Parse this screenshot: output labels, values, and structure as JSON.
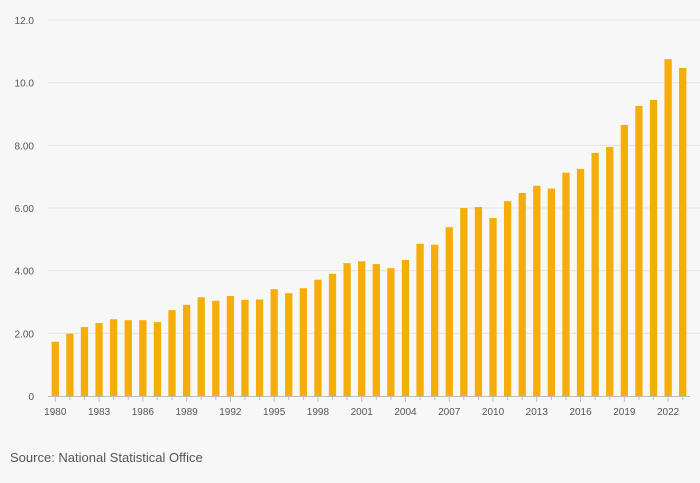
{
  "colors": {
    "bar": "#f5ad0a",
    "grid": "#e4e4e4",
    "axis": "#bdbdbd",
    "tick_text": "#555555",
    "background": "#f7f7f7"
  },
  "chart_data": {
    "type": "bar",
    "title": "",
    "xlabel": "",
    "ylabel": "",
    "ylim": [
      0,
      12
    ],
    "y_ticks": [
      {
        "value": 0,
        "label": "0"
      },
      {
        "value": 2,
        "label": "2.00"
      },
      {
        "value": 4,
        "label": "4.00"
      },
      {
        "value": 6,
        "label": "6.00"
      },
      {
        "value": 8,
        "label": "8.00"
      },
      {
        "value": 10,
        "label": "10.0"
      },
      {
        "value": 12,
        "label": "12.0"
      }
    ],
    "x_tick_labels": [
      "1980",
      "1983",
      "1986",
      "1989",
      "1992",
      "1995",
      "1998",
      "2001",
      "2004",
      "2007",
      "2010",
      "2013",
      "2016",
      "2019",
      "2022"
    ],
    "categories": [
      "1980",
      "1981",
      "1982",
      "1983",
      "1984",
      "1985",
      "1986",
      "1987",
      "1988",
      "1989",
      "1990",
      "1991",
      "1992",
      "1993",
      "1994",
      "1995",
      "1996",
      "1997",
      "1998",
      "1999",
      "2000",
      "2001",
      "2002",
      "2003",
      "2004",
      "2005",
      "2006",
      "2007",
      "2008",
      "2009",
      "2010",
      "2011",
      "2012",
      "2013",
      "2014",
      "2015",
      "2016",
      "2017",
      "2018",
      "2019",
      "2020",
      "2021",
      "2022",
      "2023"
    ],
    "values": [
      1.73,
      1.99,
      2.2,
      2.33,
      2.45,
      2.42,
      2.42,
      2.36,
      2.74,
      2.91,
      3.15,
      3.04,
      3.19,
      3.07,
      3.08,
      3.41,
      3.28,
      3.44,
      3.71,
      3.9,
      4.24,
      4.3,
      4.21,
      4.08,
      4.34,
      4.86,
      4.83,
      5.39,
      6.0,
      6.03,
      5.68,
      6.22,
      6.48,
      6.71,
      6.62,
      7.13,
      7.25,
      7.76,
      7.95,
      8.65,
      9.26,
      9.45,
      10.75,
      10.47
    ]
  },
  "footer": {
    "source": "Source: National Statistical Office"
  }
}
